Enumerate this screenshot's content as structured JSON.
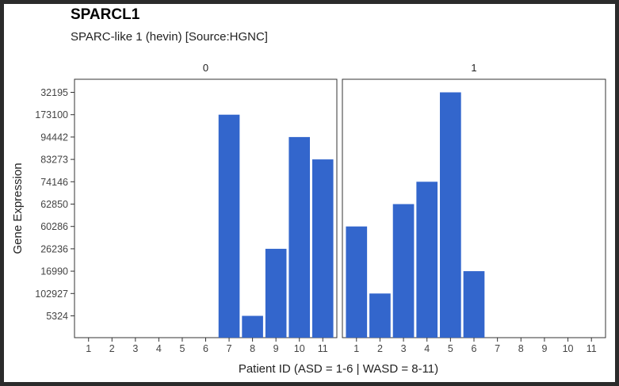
{
  "chart_data": {
    "type": "bar",
    "title": "SPARCL1",
    "subtitle": "SPARC-like 1 (hevin) [Source:HGNC]",
    "xlabel": "Patient ID (ASD = 1-6 | WASD = 8-11)",
    "ylabel": "Gene Expression",
    "y_categories": [
      "5324",
      "102927",
      "16990",
      "26236",
      "60286",
      "62850",
      "74146",
      "83273",
      "94442",
      "173100",
      "32195"
    ],
    "categories": [
      "1",
      "2",
      "3",
      "4",
      "5",
      "6",
      "7",
      "8",
      "9",
      "10",
      "11"
    ],
    "bar_color": "#3366cc",
    "panels": [
      {
        "label": "0",
        "values": [
          null,
          null,
          null,
          null,
          null,
          null,
          "173100",
          "5324",
          "26236",
          "94442",
          "83273"
        ]
      },
      {
        "label": "1",
        "values": [
          "60286",
          "102927",
          "62850",
          "74146",
          "32195",
          "16990",
          null,
          null,
          null,
          null,
          null
        ]
      }
    ]
  }
}
